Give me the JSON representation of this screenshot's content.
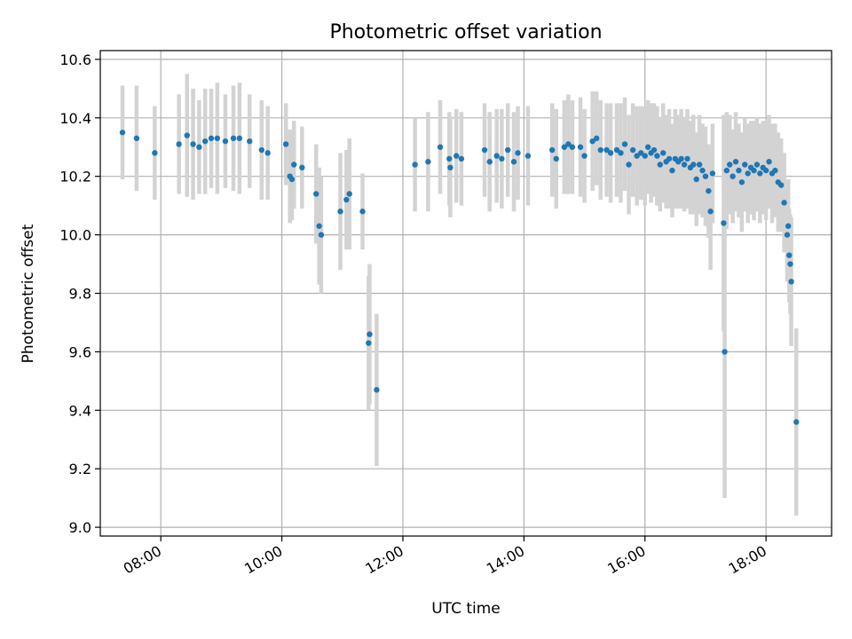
{
  "chart_data": {
    "type": "scatter",
    "title": "Photometric offset variation",
    "xlabel": "UTC time",
    "ylabel": "Photometric offset",
    "x_unit": "hours (UTC)",
    "xlim": [
      "07:00",
      "19:05"
    ],
    "ylim": [
      8.97,
      10.63
    ],
    "x_ticks": [
      "08:00",
      "10:00",
      "12:00",
      "14:00",
      "16:00",
      "18:00"
    ],
    "y_ticks": [
      "9.0",
      "9.2",
      "9.4",
      "9.6",
      "9.8",
      "10.0",
      "10.2",
      "10.4",
      "10.6"
    ],
    "grid": true,
    "legend": "none",
    "marker_color": "#1f77b4",
    "errorbar_color": "#d3d3d3",
    "points": [
      {
        "t": "07:22",
        "y": 10.35,
        "err": 0.16
      },
      {
        "t": "07:36",
        "y": 10.33,
        "err": 0.18
      },
      {
        "t": "07:54",
        "y": 10.28,
        "err": 0.16
      },
      {
        "t": "08:18",
        "y": 10.31,
        "err": 0.17
      },
      {
        "t": "08:26",
        "y": 10.34,
        "err": 0.21
      },
      {
        "t": "08:32",
        "y": 10.31,
        "err": 0.19
      },
      {
        "t": "08:38",
        "y": 10.3,
        "err": 0.16
      },
      {
        "t": "08:44",
        "y": 10.32,
        "err": 0.18
      },
      {
        "t": "08:50",
        "y": 10.33,
        "err": 0.17
      },
      {
        "t": "08:56",
        "y": 10.33,
        "err": 0.19
      },
      {
        "t": "09:04",
        "y": 10.32,
        "err": 0.16
      },
      {
        "t": "09:12",
        "y": 10.33,
        "err": 0.18
      },
      {
        "t": "09:18",
        "y": 10.33,
        "err": 0.19
      },
      {
        "t": "09:28",
        "y": 10.32,
        "err": 0.16
      },
      {
        "t": "09:40",
        "y": 10.29,
        "err": 0.17
      },
      {
        "t": "09:46",
        "y": 10.28,
        "err": 0.16
      },
      {
        "t": "10:04",
        "y": 10.31,
        "err": 0.14
      },
      {
        "t": "10:08",
        "y": 10.2,
        "err": 0.16
      },
      {
        "t": "10:10",
        "y": 10.19,
        "err": 0.14
      },
      {
        "t": "10:12",
        "y": 10.24,
        "err": 0.15
      },
      {
        "t": "10:20",
        "y": 10.23,
        "err": 0.14
      },
      {
        "t": "10:34",
        "y": 10.14,
        "err": 0.17
      },
      {
        "t": "10:37",
        "y": 10.03,
        "err": 0.2
      },
      {
        "t": "10:39",
        "y": 10.0,
        "err": 0.2
      },
      {
        "t": "10:58",
        "y": 10.08,
        "err": 0.2
      },
      {
        "t": "11:04",
        "y": 10.12,
        "err": 0.17
      },
      {
        "t": "11:07",
        "y": 10.14,
        "err": 0.19
      },
      {
        "t": "11:20",
        "y": 10.08,
        "err": 0.13
      },
      {
        "t": "11:26",
        "y": 9.63,
        "err": 0.23
      },
      {
        "t": "11:27",
        "y": 9.66,
        "err": 0.24
      },
      {
        "t": "11:34",
        "y": 9.47,
        "err": 0.26
      },
      {
        "t": "12:12",
        "y": 10.24,
        "err": 0.16
      },
      {
        "t": "12:25",
        "y": 10.25,
        "err": 0.17
      },
      {
        "t": "12:37",
        "y": 10.3,
        "err": 0.16
      },
      {
        "t": "12:46",
        "y": 10.26,
        "err": 0.16
      },
      {
        "t": "12:47",
        "y": 10.23,
        "err": 0.17
      },
      {
        "t": "12:53",
        "y": 10.27,
        "err": 0.16
      },
      {
        "t": "12:58",
        "y": 10.26,
        "err": 0.16
      },
      {
        "t": "13:21",
        "y": 10.29,
        "err": 0.16
      },
      {
        "t": "13:26",
        "y": 10.25,
        "err": 0.17
      },
      {
        "t": "13:33",
        "y": 10.27,
        "err": 0.16
      },
      {
        "t": "13:38",
        "y": 10.26,
        "err": 0.17
      },
      {
        "t": "13:44",
        "y": 10.29,
        "err": 0.16
      },
      {
        "t": "13:50",
        "y": 10.25,
        "err": 0.17
      },
      {
        "t": "13:54",
        "y": 10.28,
        "err": 0.16
      },
      {
        "t": "14:04",
        "y": 10.27,
        "err": 0.17
      },
      {
        "t": "14:28",
        "y": 10.29,
        "err": 0.16
      },
      {
        "t": "14:32",
        "y": 10.26,
        "err": 0.17
      },
      {
        "t": "14:40",
        "y": 10.3,
        "err": 0.16
      },
      {
        "t": "14:44",
        "y": 10.31,
        "err": 0.17
      },
      {
        "t": "14:48",
        "y": 10.3,
        "err": 0.16
      },
      {
        "t": "14:56",
        "y": 10.3,
        "err": 0.17
      },
      {
        "t": "15:00",
        "y": 10.27,
        "err": 0.16
      },
      {
        "t": "15:08",
        "y": 10.32,
        "err": 0.17
      },
      {
        "t": "15:12",
        "y": 10.33,
        "err": 0.16
      },
      {
        "t": "15:16",
        "y": 10.29,
        "err": 0.17
      },
      {
        "t": "15:22",
        "y": 10.29,
        "err": 0.16
      },
      {
        "t": "15:26",
        "y": 10.28,
        "err": 0.17
      },
      {
        "t": "15:32",
        "y": 10.29,
        "err": 0.16
      },
      {
        "t": "15:36",
        "y": 10.28,
        "err": 0.17
      },
      {
        "t": "15:40",
        "y": 10.31,
        "err": 0.16
      },
      {
        "t": "15:44",
        "y": 10.24,
        "err": 0.17
      },
      {
        "t": "15:48",
        "y": 10.29,
        "err": 0.16
      },
      {
        "t": "15:52",
        "y": 10.27,
        "err": 0.17
      },
      {
        "t": "15:56",
        "y": 10.28,
        "err": 0.16
      },
      {
        "t": "16:00",
        "y": 10.27,
        "err": 0.17
      },
      {
        "t": "16:03",
        "y": 10.3,
        "err": 0.16
      },
      {
        "t": "16:06",
        "y": 10.28,
        "err": 0.17
      },
      {
        "t": "16:09",
        "y": 10.29,
        "err": 0.16
      },
      {
        "t": "16:12",
        "y": 10.27,
        "err": 0.17
      },
      {
        "t": "16:15",
        "y": 10.24,
        "err": 0.16
      },
      {
        "t": "16:18",
        "y": 10.28,
        "err": 0.17
      },
      {
        "t": "16:21",
        "y": 10.25,
        "err": 0.16
      },
      {
        "t": "16:24",
        "y": 10.26,
        "err": 0.17
      },
      {
        "t": "16:27",
        "y": 10.22,
        "err": 0.16
      },
      {
        "t": "16:30",
        "y": 10.26,
        "err": 0.17
      },
      {
        "t": "16:33",
        "y": 10.25,
        "err": 0.16
      },
      {
        "t": "16:36",
        "y": 10.26,
        "err": 0.17
      },
      {
        "t": "16:39",
        "y": 10.24,
        "err": 0.16
      },
      {
        "t": "16:42",
        "y": 10.26,
        "err": 0.17
      },
      {
        "t": "16:45",
        "y": 10.23,
        "err": 0.16
      },
      {
        "t": "16:48",
        "y": 10.24,
        "err": 0.17
      },
      {
        "t": "16:51",
        "y": 10.19,
        "err": 0.16
      },
      {
        "t": "16:54",
        "y": 10.24,
        "err": 0.17
      },
      {
        "t": "16:57",
        "y": 10.22,
        "err": 0.16
      },
      {
        "t": "17:00",
        "y": 10.2,
        "err": 0.17
      },
      {
        "t": "17:03",
        "y": 10.15,
        "err": 0.16
      },
      {
        "t": "17:05",
        "y": 10.08,
        "err": 0.2
      },
      {
        "t": "17:07",
        "y": 10.21,
        "err": 0.17
      },
      {
        "t": "17:18",
        "y": 10.04,
        "err": 0.37
      },
      {
        "t": "17:19",
        "y": 9.6,
        "err": 0.5
      },
      {
        "t": "17:21",
        "y": 10.22,
        "err": 0.2
      },
      {
        "t": "17:24",
        "y": 10.24,
        "err": 0.17
      },
      {
        "t": "17:27",
        "y": 10.2,
        "err": 0.16
      },
      {
        "t": "17:30",
        "y": 10.25,
        "err": 0.17
      },
      {
        "t": "17:33",
        "y": 10.22,
        "err": 0.16
      },
      {
        "t": "17:36",
        "y": 10.18,
        "err": 0.17
      },
      {
        "t": "17:39",
        "y": 10.24,
        "err": 0.16
      },
      {
        "t": "17:42",
        "y": 10.21,
        "err": 0.17
      },
      {
        "t": "17:45",
        "y": 10.23,
        "err": 0.16
      },
      {
        "t": "17:48",
        "y": 10.22,
        "err": 0.17
      },
      {
        "t": "17:51",
        "y": 10.24,
        "err": 0.16
      },
      {
        "t": "17:54",
        "y": 10.21,
        "err": 0.17
      },
      {
        "t": "17:57",
        "y": 10.23,
        "err": 0.16
      },
      {
        "t": "18:00",
        "y": 10.22,
        "err": 0.17
      },
      {
        "t": "18:03",
        "y": 10.25,
        "err": 0.16
      },
      {
        "t": "18:06",
        "y": 10.21,
        "err": 0.17
      },
      {
        "t": "18:09",
        "y": 10.22,
        "err": 0.16
      },
      {
        "t": "18:12",
        "y": 10.18,
        "err": 0.17
      },
      {
        "t": "18:15",
        "y": 10.17,
        "err": 0.16
      },
      {
        "t": "18:18",
        "y": 10.11,
        "err": 0.17
      },
      {
        "t": "18:21",
        "y": 10.0,
        "err": 0.16
      },
      {
        "t": "18:22",
        "y": 10.03,
        "err": 0.16
      },
      {
        "t": "18:23",
        "y": 9.93,
        "err": 0.16
      },
      {
        "t": "18:24",
        "y": 9.9,
        "err": 0.17
      },
      {
        "t": "18:25",
        "y": 9.84,
        "err": 0.22
      },
      {
        "t": "18:30",
        "y": 9.36,
        "err": 0.32
      }
    ]
  }
}
